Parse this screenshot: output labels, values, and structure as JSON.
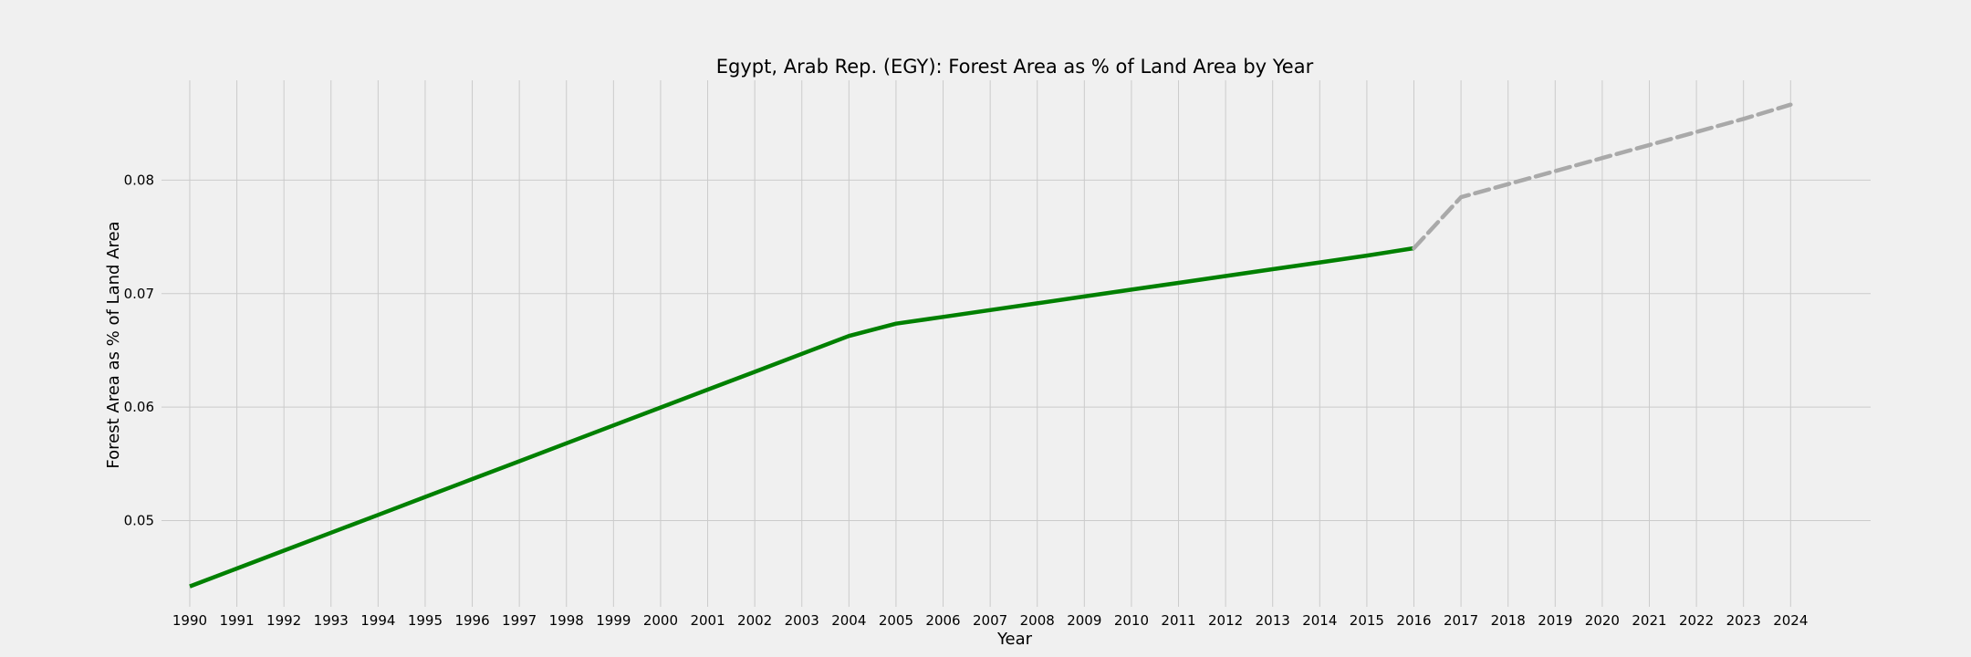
{
  "chart_data": {
    "type": "line",
    "title": "Egypt, Arab Rep. (EGY): Forest Area as % of Land Area by Year",
    "xlabel": "Year",
    "ylabel": "Forest Area as % of Land Area",
    "x_ticks": [
      "1990",
      "1991",
      "1992",
      "1993",
      "1994",
      "1995",
      "1996",
      "1997",
      "1998",
      "1999",
      "2000",
      "2001",
      "2002",
      "2003",
      "2004",
      "2005",
      "2006",
      "2007",
      "2008",
      "2009",
      "2010",
      "2011",
      "2012",
      "2013",
      "2014",
      "2015",
      "2016",
      "2017",
      "2018",
      "2019",
      "2020",
      "2021",
      "2022",
      "2023",
      "2024"
    ],
    "y_ticks": [
      "0.05",
      "0.06",
      "0.07",
      "0.08"
    ],
    "xlim": [
      1989.4,
      2025.7
    ],
    "ylim": [
      0.0424,
      0.0888
    ],
    "grid": true,
    "series": [
      {
        "color": "#008000",
        "style": "solid",
        "points": [
          [
            1990,
            0.0442
          ],
          [
            1991,
            0.04578
          ],
          [
            1992,
            0.04735
          ],
          [
            1993,
            0.04893
          ],
          [
            1994,
            0.0505
          ],
          [
            1995,
            0.05208
          ],
          [
            1996,
            0.05366
          ],
          [
            1997,
            0.05523
          ],
          [
            1998,
            0.05681
          ],
          [
            1999,
            0.05839
          ],
          [
            2000,
            0.05996
          ],
          [
            2001,
            0.06154
          ],
          [
            2002,
            0.06311
          ],
          [
            2003,
            0.06469
          ],
          [
            2004,
            0.06627
          ],
          [
            2005,
            0.06735
          ],
          [
            2006,
            0.06795
          ],
          [
            2007,
            0.06855
          ],
          [
            2008,
            0.06915
          ],
          [
            2009,
            0.06975
          ],
          [
            2010,
            0.07035
          ],
          [
            2011,
            0.07095
          ],
          [
            2012,
            0.07155
          ],
          [
            2013,
            0.07215
          ],
          [
            2014,
            0.07275
          ],
          [
            2015,
            0.07335
          ],
          [
            2016,
            0.074
          ]
        ]
      },
      {
        "color": "#a9a9a9",
        "style": "dashed",
        "points": [
          [
            2016,
            0.074
          ],
          [
            2017,
            0.0785
          ],
          [
            2018,
            0.07965
          ],
          [
            2019,
            0.0808
          ],
          [
            2020,
            0.08195
          ],
          [
            2021,
            0.0831
          ],
          [
            2022,
            0.08425
          ],
          [
            2023,
            0.0854
          ],
          [
            2024,
            0.08665
          ]
        ]
      }
    ]
  }
}
